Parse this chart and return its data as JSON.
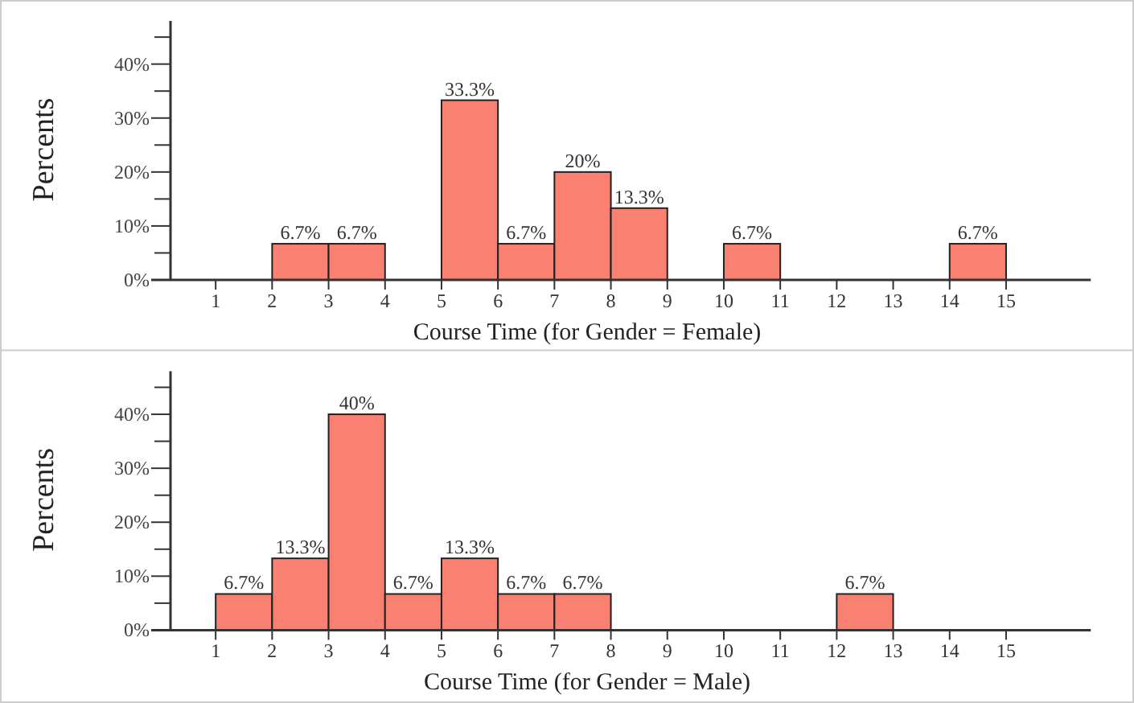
{
  "chart_data": [
    {
      "type": "histogram",
      "xlabel": "Course Time (for Gender = Female)",
      "ylabel": "Percents",
      "color": "#fa8072",
      "bins": [
        1,
        2,
        3,
        4,
        5,
        6,
        7,
        8,
        9,
        10,
        11,
        12,
        13,
        14,
        15
      ],
      "values": [
        0,
        6.7,
        6.7,
        0,
        33.3,
        6.7,
        20,
        13.3,
        0,
        6.7,
        0,
        0,
        0,
        6.7
      ],
      "value_labels": [
        null,
        "6.7%",
        "6.7%",
        null,
        "33.3%",
        "6.7%",
        "20%",
        "13.3%",
        null,
        "6.7%",
        null,
        null,
        null,
        "6.7%"
      ],
      "xlim": [
        0.2,
        16.5
      ],
      "xticks": [
        1,
        2,
        3,
        4,
        5,
        6,
        7,
        8,
        9,
        10,
        11,
        12,
        13,
        14,
        15
      ],
      "ylim": [
        0,
        48
      ],
      "yticks": [
        {
          "value": 0,
          "label": "0%"
        },
        {
          "value": 5,
          "label": null
        },
        {
          "value": 10,
          "label": "10%"
        },
        {
          "value": 15,
          "label": null
        },
        {
          "value": 20,
          "label": "20%"
        },
        {
          "value": 25,
          "label": null
        },
        {
          "value": 30,
          "label": "30%"
        },
        {
          "value": 35,
          "label": null
        },
        {
          "value": 40,
          "label": "40%"
        },
        {
          "value": 45,
          "label": null
        }
      ],
      "grid": false
    },
    {
      "type": "histogram",
      "xlabel": "Course Time (for Gender = Male)",
      "ylabel": "Percents",
      "color": "#fa8072",
      "bins": [
        1,
        2,
        3,
        4,
        5,
        6,
        7,
        8,
        9,
        10,
        11,
        12,
        13,
        14,
        15
      ],
      "values": [
        6.7,
        13.3,
        40,
        6.7,
        13.3,
        6.7,
        6.7,
        0,
        0,
        0,
        0,
        6.7,
        0,
        0
      ],
      "value_labels": [
        "6.7%",
        "13.3%",
        "40%",
        "6.7%",
        "13.3%",
        "6.7%",
        "6.7%",
        null,
        null,
        null,
        null,
        "6.7%",
        null,
        null
      ],
      "xlim": [
        0.2,
        16.5
      ],
      "xticks": [
        1,
        2,
        3,
        4,
        5,
        6,
        7,
        8,
        9,
        10,
        11,
        12,
        13,
        14,
        15
      ],
      "ylim": [
        0,
        48
      ],
      "yticks": [
        {
          "value": 0,
          "label": "0%"
        },
        {
          "value": 5,
          "label": null
        },
        {
          "value": 10,
          "label": "10%"
        },
        {
          "value": 15,
          "label": null
        },
        {
          "value": 20,
          "label": "20%"
        },
        {
          "value": 25,
          "label": null
        },
        {
          "value": 30,
          "label": "30%"
        },
        {
          "value": 35,
          "label": null
        },
        {
          "value": 40,
          "label": "40%"
        },
        {
          "value": 45,
          "label": null
        }
      ],
      "grid": false
    }
  ]
}
